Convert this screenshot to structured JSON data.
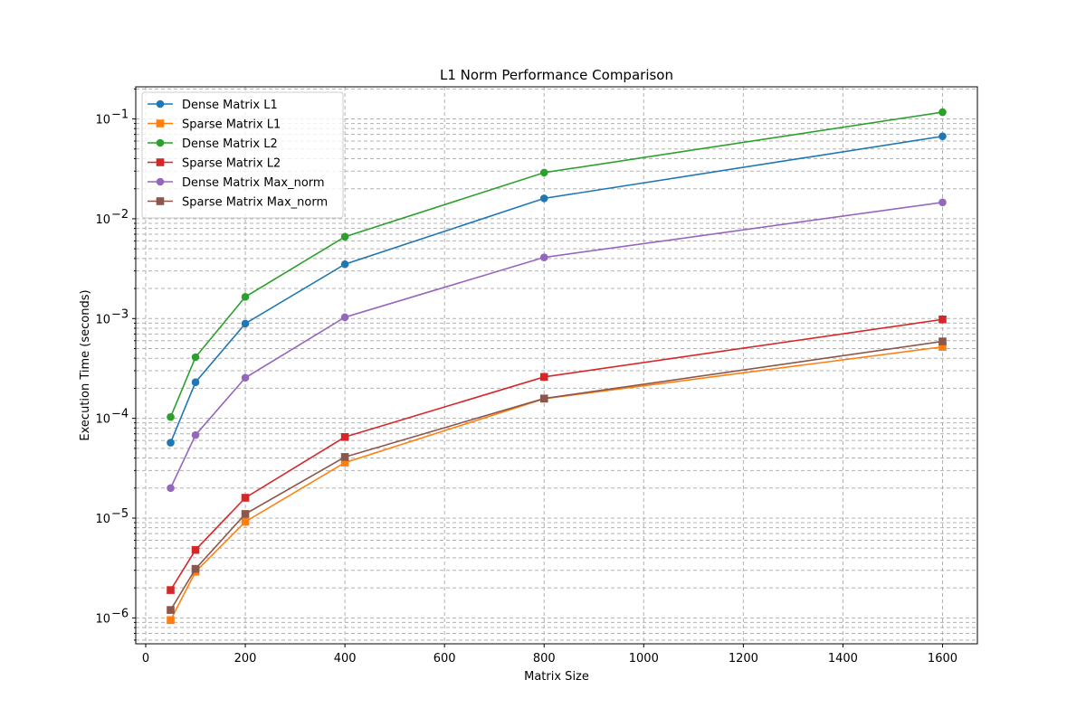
{
  "chart_data": {
    "type": "line",
    "title": "L1 Norm Performance Comparison",
    "xlabel": "Matrix Size",
    "ylabel": "Execution Time (seconds)",
    "xlim": [
      -20,
      1670
    ],
    "ylim": [
      5.5e-07,
      0.21
    ],
    "yscale": "log",
    "grid": true,
    "legend_position": "top-left",
    "x": [
      50,
      100,
      200,
      400,
      800,
      1600
    ],
    "x_ticks": [
      0,
      200,
      400,
      600,
      800,
      1000,
      1200,
      1400,
      1600
    ],
    "x_tick_labels": [
      "0",
      "200",
      "400",
      "600",
      "800",
      "1000",
      "1200",
      "1400",
      "1600"
    ],
    "y_ticks": [
      {
        "value": 1e-06,
        "base": "10",
        "exp": "−6"
      },
      {
        "value": 1e-05,
        "base": "10",
        "exp": "−5"
      },
      {
        "value": 0.0001,
        "base": "10",
        "exp": "−4"
      },
      {
        "value": 0.001,
        "base": "10",
        "exp": "−3"
      },
      {
        "value": 0.01,
        "base": "10",
        "exp": "−2"
      },
      {
        "value": 0.1,
        "base": "10",
        "exp": "−1"
      }
    ],
    "series": [
      {
        "name": "Dense Matrix L1",
        "color": "#1f77b4",
        "marker": "circle",
        "values": [
          5.7e-05,
          0.00023,
          0.00089,
          0.0035,
          0.016,
          0.067
        ]
      },
      {
        "name": "Sparse Matrix L1",
        "color": "#ff7f0e",
        "marker": "square",
        "values": [
          9.5e-07,
          2.9e-06,
          9.2e-06,
          3.6e-05,
          0.000157,
          0.00052
        ]
      },
      {
        "name": "Dense Matrix L2",
        "color": "#2ca02c",
        "marker": "circle",
        "values": [
          0.000103,
          0.00041,
          0.00165,
          0.0066,
          0.029,
          0.117
        ]
      },
      {
        "name": "Sparse Matrix L2",
        "color": "#d62728",
        "marker": "square",
        "values": [
          1.9e-06,
          4.8e-06,
          1.6e-05,
          6.5e-05,
          0.00026,
          0.00098
        ]
      },
      {
        "name": "Dense Matrix Max_norm",
        "color": "#9467bd",
        "marker": "circle",
        "values": [
          2e-05,
          6.8e-05,
          0.000255,
          0.00103,
          0.0041,
          0.0146
        ]
      },
      {
        "name": "Sparse Matrix Max_norm",
        "color": "#8c564b",
        "marker": "square",
        "values": [
          1.2e-06,
          3.1e-06,
          1.1e-05,
          4.1e-05,
          0.000158,
          0.00059
        ]
      }
    ]
  }
}
